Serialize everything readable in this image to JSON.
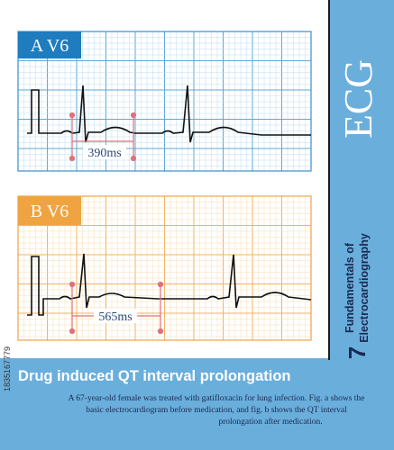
{
  "panel_a": {
    "label": "A V6",
    "interval": "390ms"
  },
  "panel_b": {
    "label": "B V6",
    "interval": "565ms"
  },
  "side": {
    "topic": "ECG",
    "series": "Fundamentals of Electrocardiography",
    "number": "7"
  },
  "image_id": "1835167779",
  "title": "Drug induced QT interval prolongation",
  "caption": [
    "A 67-year-old female was treated with gatifloxacin for lung infection. Fig. a shows the",
    "basic electrocardiogram before medication, and fig. b shows the QT interval",
    "prolongation after medication."
  ]
}
